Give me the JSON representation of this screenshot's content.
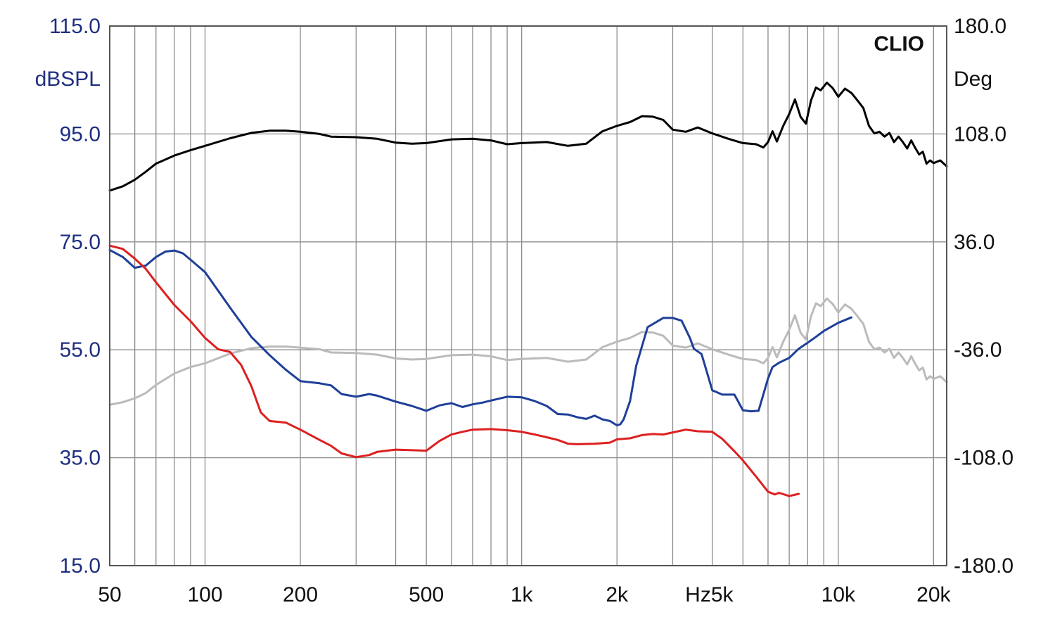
{
  "chart_data": {
    "type": "line",
    "brand_label": "CLIO",
    "x_scale": "log",
    "xlim": [
      50,
      22000
    ],
    "x_ticks": [
      {
        "value": 50,
        "label": "50"
      },
      {
        "value": 100,
        "label": "100"
      },
      {
        "value": 200,
        "label": "200"
      },
      {
        "value": 500,
        "label": "500"
      },
      {
        "value": 1000,
        "label": "1k"
      },
      {
        "value": 2000,
        "label": "2k"
      },
      {
        "value": 5000,
        "label": "Hz5k"
      },
      {
        "value": 10000,
        "label": "10k"
      },
      {
        "value": 20000,
        "label": "20k"
      }
    ],
    "y_left": {
      "unit": "dBSPL",
      "ylim": [
        15,
        115
      ],
      "ticks": [
        "115.0",
        "95.0",
        "75.0",
        "55.0",
        "35.0",
        "15.0"
      ],
      "tick_values": [
        115,
        95,
        75,
        55,
        35,
        15
      ]
    },
    "y_right": {
      "unit": "Deg",
      "ylim": [
        -180,
        180
      ],
      "ticks": [
        "180.0",
        "108.0",
        "36.0",
        "-36.0",
        "-108.0",
        "-180.0"
      ],
      "tick_values": [
        180,
        108,
        36,
        -36,
        -108,
        -180
      ]
    },
    "grid": true,
    "series": [
      {
        "color": "#000000",
        "x": [
          50,
          55,
          60,
          65,
          70,
          80,
          90,
          100,
          120,
          140,
          160,
          180,
          200,
          230,
          250,
          300,
          350,
          400,
          450,
          500,
          600,
          700,
          800,
          900,
          1000,
          1200,
          1400,
          1600,
          1800,
          2000,
          2200,
          2400,
          2600,
          2800,
          3000,
          3300,
          3600,
          4000,
          4500,
          5000,
          5500,
          5800,
          6000,
          6200,
          6400,
          6700,
          7000,
          7300,
          7600,
          7900,
          8200,
          8500,
          8800,
          9200,
          9600,
          10000,
          10500,
          11000,
          11500,
          12000,
          12500,
          13000,
          13500,
          14000,
          14500,
          15000,
          15500,
          16000,
          16500,
          17000,
          17500,
          18000,
          18500,
          19000,
          19500,
          20000,
          21000,
          22000
        ],
        "values": [
          84.5,
          85.3,
          86.5,
          88,
          89.5,
          91,
          92,
          92.8,
          94.2,
          95.2,
          95.6,
          95.6,
          95.4,
          95,
          94.5,
          94.4,
          94.1,
          93.4,
          93.2,
          93.3,
          94,
          94.1,
          93.8,
          93.1,
          93.3,
          93.5,
          92.8,
          93.2,
          95.5,
          96.5,
          97.2,
          98.3,
          98.2,
          97.6,
          95.8,
          95.4,
          96.2,
          95.1,
          94.1,
          93.3,
          93.1,
          92.5,
          93.5,
          95.5,
          93.6,
          96.5,
          98.7,
          101.4,
          98.2,
          96.9,
          101.2,
          103.6,
          103.1,
          104.5,
          103.5,
          101.9,
          103.4,
          102.6,
          101.2,
          99.8,
          96.5,
          95.1,
          95.4,
          94.5,
          95.2,
          93.5,
          94.5,
          93.5,
          92.3,
          93.8,
          92.4,
          91.2,
          91.7,
          89.5,
          90.1,
          89.6,
          90.1,
          89
        ]
      },
      {
        "color": "#bbbbbb",
        "x": [
          50,
          55,
          60,
          65,
          70,
          80,
          90,
          100,
          120,
          140,
          160,
          180,
          200,
          230,
          250,
          300,
          350,
          400,
          450,
          500,
          600,
          700,
          800,
          900,
          1000,
          1200,
          1400,
          1600,
          1800,
          2000,
          2200,
          2400,
          2600,
          2800,
          3000,
          3300,
          3600,
          4000,
          4500,
          5000,
          5500,
          5800,
          6000,
          6200,
          6400,
          6700,
          7000,
          7300,
          7600,
          7900,
          8200,
          8500,
          8800,
          9200,
          9600,
          10000,
          10500,
          11000,
          11500,
          12000,
          12500,
          13000,
          13500,
          14000,
          14500,
          15000,
          15500,
          16000,
          16500,
          17000,
          17500,
          18000,
          18500,
          19000,
          19500,
          20000,
          21000,
          22000
        ],
        "values": [
          44.8,
          45.3,
          46,
          47,
          48.5,
          50.6,
          51.8,
          52.5,
          54.3,
          55.3,
          55.6,
          55.6,
          55.4,
          55.1,
          54.5,
          54.4,
          54.1,
          53.4,
          53.2,
          53.3,
          54,
          54.1,
          53.8,
          53.1,
          53.3,
          53.5,
          52.8,
          53.2,
          55.5,
          56.5,
          57.2,
          58.3,
          58.2,
          57.6,
          55.8,
          55.4,
          56.2,
          55.1,
          54.1,
          53.3,
          53.1,
          52.5,
          53.5,
          55.5,
          53.6,
          56.5,
          58.7,
          61.4,
          58.2,
          56.9,
          61.2,
          63.6,
          63.1,
          64.5,
          63.5,
          61.9,
          63.4,
          62.6,
          61.2,
          59.8,
          56.5,
          55.1,
          55.4,
          54.5,
          55.2,
          53.5,
          54.5,
          53.5,
          52.3,
          53.8,
          52.4,
          51.2,
          51.7,
          49.5,
          50.1,
          49.6,
          50.1,
          49
        ]
      },
      {
        "color": "#1f3f99",
        "x": [
          50,
          55,
          60,
          65,
          70,
          75,
          80,
          85,
          90,
          100,
          120,
          140,
          160,
          180,
          200,
          230,
          250,
          270,
          300,
          330,
          350,
          400,
          450,
          500,
          550,
          600,
          650,
          700,
          750,
          800,
          900,
          1000,
          1100,
          1200,
          1300,
          1400,
          1500,
          1600,
          1700,
          1800,
          1900,
          2000,
          2050,
          2100,
          2200,
          2300,
          2500,
          2800,
          3000,
          3200,
          3400,
          3500,
          3700,
          4000,
          4300,
          4700,
          5000,
          5300,
          5600,
          6000,
          6200,
          6500,
          7000,
          7500,
          8000,
          8500,
          9000,
          10000,
          11000
        ],
        "values": [
          73.5,
          72.2,
          70.2,
          70.6,
          72.2,
          73.2,
          73.4,
          72.9,
          71.7,
          69.4,
          62.8,
          57.4,
          54,
          51.3,
          49.2,
          48.8,
          48.4,
          46.8,
          46.3,
          46.8,
          46.5,
          45.4,
          44.6,
          43.7,
          44.7,
          45.1,
          44.4,
          44.9,
          45.2,
          45.6,
          46.3,
          46.2,
          45.5,
          44.6,
          43.1,
          43,
          42.5,
          42.2,
          42.8,
          42.1,
          41.8,
          41,
          41.2,
          42.1,
          45.5,
          52,
          59.2,
          60.9,
          60.9,
          60.4,
          57.2,
          55.2,
          54.2,
          47.5,
          46.7,
          46.7,
          43.8,
          43.6,
          43.7,
          49.7,
          51.8,
          52.6,
          53.5,
          55.2,
          56.3,
          57.4,
          58.5,
          60,
          61
        ]
      },
      {
        "color": "#dd2020",
        "x": [
          50,
          55,
          60,
          65,
          70,
          80,
          90,
          100,
          110,
          120,
          130,
          140,
          150,
          160,
          180,
          200,
          230,
          250,
          270,
          300,
          330,
          350,
          400,
          450,
          500,
          550,
          600,
          650,
          700,
          800,
          900,
          1000,
          1100,
          1200,
          1300,
          1400,
          1500,
          1700,
          1900,
          2000,
          2200,
          2400,
          2600,
          2800,
          3000,
          3300,
          3600,
          4000,
          4300,
          4700,
          5000,
          5500,
          6000,
          6300,
          6500,
          7000,
          7500
        ],
        "values": [
          74.3,
          73.7,
          71.9,
          70,
          67.5,
          63.3,
          60.3,
          57.2,
          55.1,
          54.6,
          52.2,
          48.3,
          43.4,
          41.8,
          41.5,
          40.2,
          38.3,
          37.2,
          35.8,
          35.1,
          35.5,
          36.1,
          36.5,
          36.4,
          36.3,
          38.1,
          39.3,
          39.8,
          40.2,
          40.3,
          40.1,
          39.8,
          39.3,
          38.8,
          38.3,
          37.6,
          37.5,
          37.6,
          37.8,
          38.4,
          38.6,
          39.2,
          39.4,
          39.3,
          39.7,
          40.2,
          39.9,
          39.8,
          38.5,
          36.2,
          34.5,
          31.5,
          28.7,
          28.2,
          28.5,
          27.9,
          28.3
        ]
      }
    ]
  }
}
